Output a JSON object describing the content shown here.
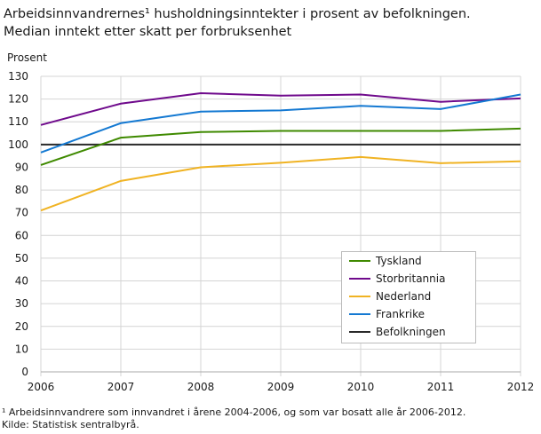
{
  "chart_data": {
    "type": "line",
    "title": "Arbeidsinnvandrernes¹ husholdningsinntekter i prosent av befolkningen.",
    "subtitle": "Median inntekt etter skatt per forbruksenhet",
    "ylabel": "Prosent",
    "xlabel": "",
    "ylim": [
      0,
      130
    ],
    "yticks": [
      "0",
      "10",
      "20",
      "30",
      "40",
      "50",
      "60",
      "70",
      "80",
      "90",
      "100",
      "110",
      "120",
      "130"
    ],
    "x": [
      "2006",
      "2007",
      "2008",
      "2009",
      "2010",
      "2011",
      "2012"
    ],
    "grid": true,
    "legend_position": "bottom-right",
    "series": [
      {
        "name": "Tyskland",
        "color": "#3f8a00",
        "values": [
          91,
          103,
          105.5,
          106,
          106,
          106,
          107
        ]
      },
      {
        "name": "Storbritannia",
        "color": "#6f0a8c",
        "values": [
          108.6,
          118,
          122.6,
          121.5,
          122,
          118.8,
          120.3
        ]
      },
      {
        "name": "Nederland",
        "color": "#f0b323",
        "values": [
          71,
          84,
          90,
          92,
          94.5,
          91.8,
          92.6
        ]
      },
      {
        "name": "Frankrike",
        "color": "#1479d2",
        "values": [
          96.5,
          109.4,
          114.5,
          115,
          117,
          115.6,
          122
        ]
      },
      {
        "name": "Befolkningen",
        "color": "#2a2a2a",
        "values": [
          100,
          100,
          100,
          100,
          100,
          100,
          100
        ]
      }
    ],
    "footnote": "¹ Arbeidsinnvandrere som innvandret i årene 2004-2006, og som var bosatt alle år 2006-2012.",
    "source": "Kilde: Statistisk sentralbyrå."
  }
}
